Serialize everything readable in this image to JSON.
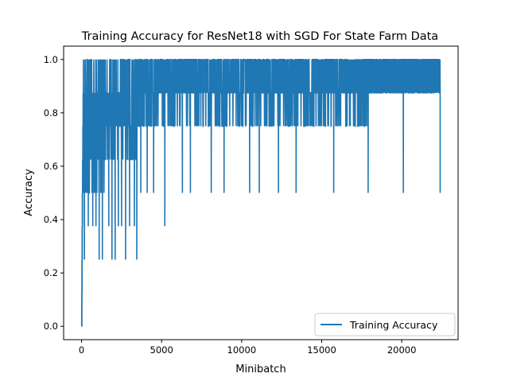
{
  "chart_data": {
    "type": "line",
    "title": "Training Accuracy for ResNet18 with SGD For State Farm Data",
    "xlabel": "Minibatch",
    "ylabel": "Accuracy",
    "xlim": [
      -1120,
      23520
    ],
    "ylim": [
      -0.05,
      1.05
    ],
    "xticks": [
      0,
      5000,
      10000,
      15000,
      20000
    ],
    "xtick_labels": [
      "0",
      "5000",
      "10000",
      "15000",
      "20000"
    ],
    "yticks": [
      0.0,
      0.2,
      0.4,
      0.6,
      0.8,
      1.0
    ],
    "ytick_labels": [
      "0.0",
      "0.2",
      "0.4",
      "0.6",
      "0.8",
      "1.0"
    ],
    "grid": false,
    "legend_position": "lower right",
    "series": [
      {
        "name": "Training Accuracy",
        "color": "#1f77b4",
        "description_points": {
          "x": [
            0,
            20,
            40,
            60,
            80,
            100,
            150,
            200,
            300,
            500,
            800,
            1100,
            1500,
            2000,
            2500,
            3000,
            3500,
            4000,
            5000,
            5200,
            6000,
            7000,
            8000,
            9000,
            10000,
            11000,
            12000,
            13000,
            14000,
            15000,
            15750,
            16000,
            17000,
            17900,
            18000,
            19000,
            20000,
            20100,
            21000,
            22000,
            22400
          ],
          "y": [
            0.0,
            0.0,
            0.38,
            0.5,
            0.75,
            1.0,
            0.25,
            0.5,
            0.875,
            0.5,
            0.625,
            0.25,
            0.375,
            0.25,
            0.5,
            0.25,
            0.25,
            0.625,
            0.75,
            0.375,
            0.75,
            0.625,
            0.75,
            0.5,
            0.75,
            0.5,
            0.75,
            0.625,
            0.75,
            0.625,
            0.5,
            0.75,
            0.75,
            0.5,
            0.875,
            0.875,
            0.875,
            0.5,
            0.875,
            1.0,
            0.5
          ]
        }
      }
    ]
  }
}
